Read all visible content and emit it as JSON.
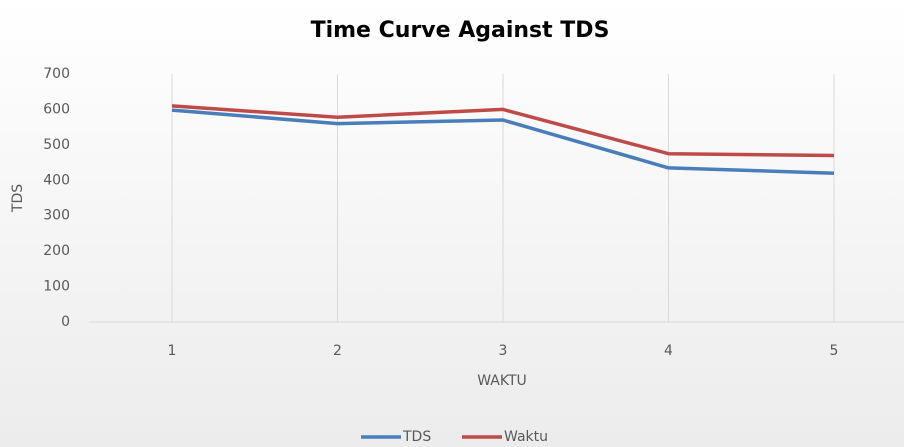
{
  "chart_data": {
    "type": "line",
    "title": "Time Curve Against TDS",
    "x_label": "WAKTU",
    "y_label": "TDS",
    "categories": [
      "1",
      "2",
      "3",
      "4",
      "5"
    ],
    "series": [
      {
        "name": "TDS",
        "color": "#4a7ebb",
        "values": [
          598,
          560,
          570,
          435,
          420
        ]
      },
      {
        "name": "Waktu",
        "color": "#be4b48",
        "values": [
          610,
          578,
          600,
          475,
          470
        ]
      }
    ],
    "ylim": [
      0,
      700
    ],
    "yticks": [
      0,
      100,
      200,
      300,
      400,
      500,
      600,
      700
    ],
    "grid": false,
    "legend": "bottom"
  }
}
